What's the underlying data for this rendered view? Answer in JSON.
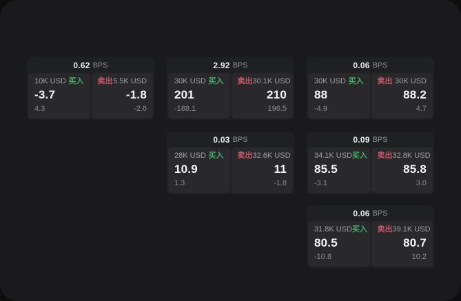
{
  "labels": {
    "bps": "BPS",
    "buy": "买入",
    "sell": "卖出"
  },
  "colors": {
    "page_bg": "#0e0e0f",
    "window_bg": "#1a1a1c",
    "card_bg": "#1f2022",
    "panel_bg": "#29292c",
    "buy_green": "#46ab68",
    "sell_red": "#c75568",
    "value_white": "#f4f4f5",
    "muted_gray": "#8a8b8e",
    "notional_gray": "#9fa0a3"
  },
  "cards": [
    {
      "bps": "0.62",
      "buy": {
        "notional": "10K USD",
        "value": "-3.7",
        "delta": "4.3"
      },
      "sell": {
        "notional": "5.5K USD",
        "value": "-1.8",
        "delta": "-2.6"
      }
    },
    {
      "bps": "2.92",
      "buy": {
        "notional": "30K USD",
        "value": "201",
        "delta": "-188.1"
      },
      "sell": {
        "notional": "30.1K USD",
        "value": "210",
        "delta": "196.5"
      }
    },
    {
      "bps": "0.06",
      "buy": {
        "notional": "30K USD",
        "value": "88",
        "delta": "-4.9"
      },
      "sell": {
        "notional": "30K USD",
        "value": "88.2",
        "delta": "4.7"
      }
    },
    {
      "bps": "0.03",
      "buy": {
        "notional": "28K USD",
        "value": "10.9",
        "delta": "1.3"
      },
      "sell": {
        "notional": "32.6K USD",
        "value": "11",
        "delta": "-1.8"
      }
    },
    {
      "bps": "0.09",
      "buy": {
        "notional": "34.1K USD",
        "value": "85.5",
        "delta": "-3.1"
      },
      "sell": {
        "notional": "32.8K USD",
        "value": "85.8",
        "delta": "3.0"
      }
    },
    {
      "bps": "0.06",
      "buy": {
        "notional": "31.8K USD",
        "value": "80.5",
        "delta": "-10.8"
      },
      "sell": {
        "notional": "39.1K USD",
        "value": "80.7",
        "delta": "10.2"
      }
    }
  ]
}
